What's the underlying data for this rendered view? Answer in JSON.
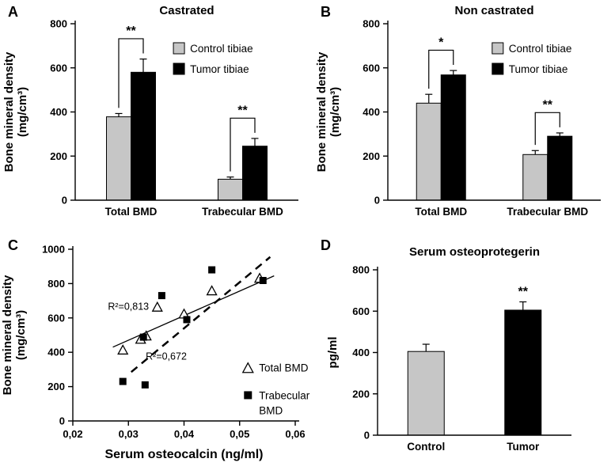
{
  "figure": {
    "panel_letters": [
      "A",
      "B",
      "C",
      "D"
    ]
  },
  "chart_data": [
    {
      "panel": "A",
      "type": "grouped_bar",
      "title": "Castrated",
      "ylabel": [
        "Bone mineral density",
        "(mg/cm³)"
      ],
      "ylim": [
        0,
        800
      ],
      "yticks": [
        0,
        200,
        400,
        600,
        800
      ],
      "categories": [
        "Total BMD",
        "Trabecular BMD"
      ],
      "series": [
        {
          "name": "Control tibiae",
          "color": "#c6c6c6",
          "values": [
            378,
            95
          ],
          "errors": [
            15,
            10
          ]
        },
        {
          "name": "Tumor tibiae",
          "color": "#000000",
          "values": [
            580,
            245
          ],
          "errors": [
            60,
            35
          ]
        }
      ],
      "significance": [
        {
          "category": 0,
          "label": "**"
        },
        {
          "category": 1,
          "label": "**"
        }
      ],
      "legend_position": "upper-right"
    },
    {
      "panel": "B",
      "type": "grouped_bar",
      "title": "Non castrated",
      "ylabel": [
        "Bone mineral density",
        "(mg/cm³)"
      ],
      "ylim": [
        0,
        800
      ],
      "yticks": [
        0,
        200,
        400,
        600,
        800
      ],
      "categories": [
        "Total BMD",
        "Trabecular BMD"
      ],
      "series": [
        {
          "name": "Control tibiae",
          "color": "#c6c6c6",
          "values": [
            440,
            207
          ],
          "errors": [
            40,
            18
          ]
        },
        {
          "name": "Tumor tibiae",
          "color": "#000000",
          "values": [
            568,
            290
          ],
          "errors": [
            20,
            15
          ]
        }
      ],
      "significance": [
        {
          "category": 0,
          "label": "*"
        },
        {
          "category": 1,
          "label": "**"
        }
      ],
      "legend_position": "upper-right"
    },
    {
      "panel": "C",
      "type": "scatter",
      "xlabel": "Serum osteocalcin (ng/ml)",
      "ylabel": [
        "Bone mineral density",
        "(mg/cm³)"
      ],
      "xlim": [
        0.02,
        0.06
      ],
      "xticks": {
        "values": [
          0.02,
          0.03,
          0.04,
          0.05,
          0.06
        ],
        "labels": [
          "0,02",
          "0,03",
          "0,04",
          "0,05",
          "0,06"
        ]
      },
      "ylim": [
        0,
        1000
      ],
      "yticks": [
        0,
        200,
        400,
        600,
        800,
        1000
      ],
      "series": [
        {
          "name": "Total BMD",
          "marker": "triangle-open",
          "points": [
            [
              0.029,
              415
            ],
            [
              0.0322,
              478
            ],
            [
              0.0332,
              497
            ],
            [
              0.0352,
              665
            ],
            [
              0.04,
              625
            ],
            [
              0.045,
              760
            ],
            [
              0.0536,
              833
            ]
          ],
          "trendline": {
            "style": "solid",
            "x1": 0.0272,
            "y1": 430,
            "x2": 0.0562,
            "y2": 845
          },
          "r2": {
            "text": "R²=0,813",
            "x": 0.03,
            "y": 665
          }
        },
        {
          "name": "Trabecular BMD",
          "marker": "square-filled",
          "points": [
            [
              0.029,
              230
            ],
            [
              0.0327,
              488
            ],
            [
              0.033,
              210
            ],
            [
              0.036,
              730
            ],
            [
              0.0405,
              590
            ],
            [
              0.045,
              880
            ],
            [
              0.0542,
              818
            ]
          ],
          "trendline": {
            "style": "dashed",
            "x1": 0.0305,
            "y1": 285,
            "x2": 0.0555,
            "y2": 955
          },
          "r2": {
            "text": "R²=0,672",
            "x": 0.0368,
            "y": 375
          }
        }
      ],
      "legend": {
        "items": [
          {
            "series": 0,
            "x": 0.0515,
            "y": 310
          },
          {
            "series": 1,
            "x": 0.0515,
            "y": 150,
            "wrap": true
          }
        ]
      }
    },
    {
      "panel": "D",
      "type": "bar",
      "title": "Serum osteoprotegerin",
      "ylabel": [
        "pg/ml"
      ],
      "ylim": [
        0,
        800
      ],
      "yticks": [
        0,
        200,
        400,
        600,
        800
      ],
      "categories": [
        "Control",
        "Tumor"
      ],
      "values": [
        405,
        605
      ],
      "errors": [
        35,
        40
      ],
      "colors": [
        "#c6c6c6",
        "#000000"
      ],
      "significance": [
        {
          "category": 1,
          "label": "**"
        }
      ]
    }
  ]
}
